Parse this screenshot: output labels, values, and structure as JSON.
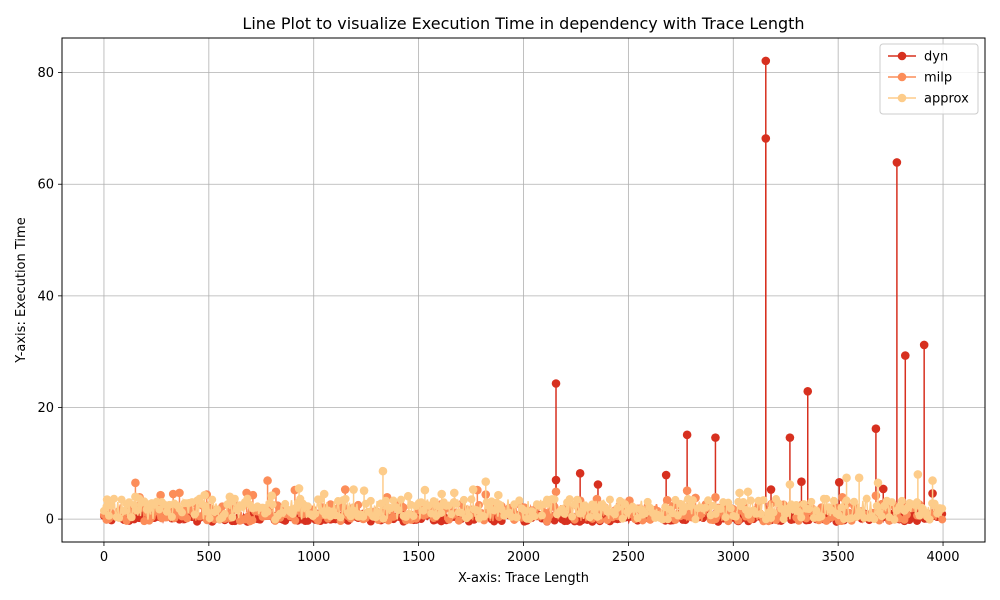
{
  "chart_data": {
    "type": "line",
    "title": "Line Plot to visualize Execution Time in dependency with Trace Length",
    "xlabel": "X-axis: Trace Length",
    "ylabel": "Y-axis: Execution Time",
    "xlim": [
      -200,
      4200
    ],
    "ylim": [
      -4.1,
      86.2
    ],
    "xticks": [
      0,
      500,
      1000,
      1500,
      2000,
      2500,
      3000,
      3500,
      4000
    ],
    "yticks": [
      0,
      20,
      40,
      60,
      80
    ],
    "grid": true,
    "legend_position": "top-right",
    "series": [
      {
        "name": "dyn",
        "color": "#d7301f",
        "baseline": 0.3,
        "points": [
          [
            2155,
            24.3
          ],
          [
            2155,
            7.0
          ],
          [
            2270,
            8.2
          ],
          [
            2355,
            6.2
          ],
          [
            2680,
            7.9
          ],
          [
            2780,
            15.1
          ],
          [
            2915,
            14.6
          ],
          [
            3155,
            82.1
          ],
          [
            3155,
            68.2
          ],
          [
            3180,
            5.3
          ],
          [
            3270,
            14.6
          ],
          [
            3325,
            6.7
          ],
          [
            3355,
            22.9
          ],
          [
            3505,
            6.6
          ],
          [
            3680,
            16.2
          ],
          [
            3715,
            5.4
          ],
          [
            3780,
            63.9
          ],
          [
            3820,
            29.3
          ],
          [
            3910,
            31.2
          ],
          [
            3950,
            4.6
          ]
        ]
      },
      {
        "name": "milp",
        "color": "#fc8d59",
        "baseline": 1.2,
        "points": [
          [
            150,
            6.5
          ],
          [
            170,
            3.9
          ],
          [
            270,
            4.3
          ],
          [
            330,
            4.5
          ],
          [
            360,
            4.7
          ],
          [
            490,
            4.4
          ],
          [
            680,
            4.7
          ],
          [
            710,
            4.3
          ],
          [
            780,
            6.9
          ],
          [
            820,
            4.9
          ],
          [
            910,
            5.2
          ],
          [
            1150,
            5.3
          ],
          [
            1350,
            3.9
          ],
          [
            1780,
            5.2
          ],
          [
            1820,
            4.4
          ],
          [
            2155,
            4.9
          ],
          [
            2270,
            3.3
          ],
          [
            2350,
            3.6
          ],
          [
            2505,
            3.3
          ],
          [
            2685,
            3.4
          ],
          [
            2780,
            5.1
          ],
          [
            2820,
            3.8
          ],
          [
            2915,
            3.9
          ],
          [
            3520,
            3.9
          ],
          [
            3680,
            4.2
          ]
        ]
      },
      {
        "name": "approx",
        "color": "#fdcc8a",
        "baseline": 1.8,
        "points": [
          [
            15,
            3.5
          ],
          [
            150,
            4.0
          ],
          [
            480,
            4.3
          ],
          [
            600,
            4.0
          ],
          [
            800,
            4.2
          ],
          [
            930,
            5.5
          ],
          [
            1050,
            4.5
          ],
          [
            1190,
            5.3
          ],
          [
            1240,
            5.1
          ],
          [
            1330,
            8.6
          ],
          [
            1450,
            4.1
          ],
          [
            1530,
            5.2
          ],
          [
            1610,
            4.5
          ],
          [
            1670,
            4.7
          ],
          [
            1760,
            5.3
          ],
          [
            1820,
            6.7
          ],
          [
            1880,
            4.3
          ],
          [
            3030,
            4.7
          ],
          [
            3070,
            4.9
          ],
          [
            3270,
            6.2
          ],
          [
            3540,
            7.4
          ],
          [
            3600,
            7.4
          ],
          [
            3690,
            6.5
          ],
          [
            3880,
            8.0
          ],
          [
            3950,
            6.9
          ]
        ]
      }
    ]
  }
}
